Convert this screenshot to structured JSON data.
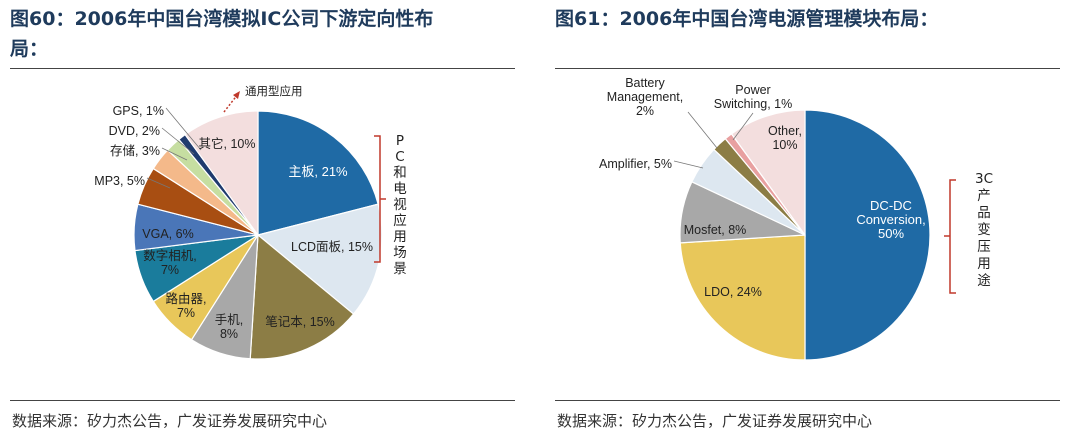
{
  "left": {
    "title_line1": "图60：2006年中国台湾模拟IC公司下游定向性布",
    "title_line2": "局：",
    "source": "数据来源：矽力杰公告，广发证券发展研究中心",
    "bracket_label_chars": [
      "P",
      "C",
      "和",
      "电",
      "视",
      "应",
      "用",
      "场",
      "景"
    ],
    "arrow_label": "通用型应用"
  },
  "right": {
    "title": "图61：2006年中国台湾电源管理模块布局：",
    "source": "数据来源：矽力杰公告，广发证券发展研究中心",
    "bracket_label_chars": [
      "3C",
      "产",
      "品",
      "变",
      "压",
      "用",
      "途"
    ]
  },
  "chart_data": [
    {
      "type": "pie",
      "title": "2006年中国台湾模拟IC公司下游定向性布局",
      "slices": [
        {
          "name": "主板",
          "value": 21,
          "color": "#1f6aa5",
          "label": "主板, 21%"
        },
        {
          "name": "LCD面板",
          "value": 15,
          "color": "#dde7f0",
          "label": "LCD面板, 15%"
        },
        {
          "name": "笔记本",
          "value": 15,
          "color": "#8c7d45",
          "label": "笔记本, 15%"
        },
        {
          "name": "手机",
          "value": 8,
          "color": "#a8a8a8",
          "label_lines": [
            "手机,",
            "8%"
          ]
        },
        {
          "name": "路由器",
          "value": 7,
          "color": "#e8c75a",
          "label_lines": [
            "路由器,",
            "7%"
          ]
        },
        {
          "name": "数字相机",
          "value": 7,
          "color": "#1a7c9c",
          "label_lines": [
            "数字相机,",
            "7%"
          ]
        },
        {
          "name": "VGA",
          "value": 6,
          "color": "#4a76b8",
          "label": "VGA, 6%"
        },
        {
          "name": "MP3",
          "value": 5,
          "color": "#a84e12",
          "label": "MP3, 5%"
        },
        {
          "name": "存储",
          "value": 3,
          "color": "#f4b98a",
          "label": "存储, 3%"
        },
        {
          "name": "DVD",
          "value": 2,
          "color": "#c6dea1",
          "label": "DVD, 2%"
        },
        {
          "name": "GPS",
          "value": 1,
          "color": "#1f3b6e",
          "label": "GPS, 1%"
        },
        {
          "name": "其它",
          "value": 10,
          "color": "#f3dede",
          "label": "其它, 10%"
        }
      ]
    },
    {
      "type": "pie",
      "title": "2006年中国台湾电源管理模块布局",
      "slices": [
        {
          "name": "DC-DC Conversion",
          "value": 50,
          "color": "#1f6aa5",
          "label_lines": [
            "DC-DC",
            "Conversion,",
            "50%"
          ]
        },
        {
          "name": "LDO",
          "value": 24,
          "color": "#e8c75a",
          "label": "LDO, 24%"
        },
        {
          "name": "Mosfet",
          "value": 8,
          "color": "#a8a8a8",
          "label": "Mosfet, 8%"
        },
        {
          "name": "Amplifier",
          "value": 5,
          "color": "#dde7f0",
          "label": "Amplifier, 5%"
        },
        {
          "name": "Battery Management",
          "value": 2,
          "color": "#8c7d45",
          "label_lines": [
            "Battery",
            "Management,",
            "2%"
          ]
        },
        {
          "name": "Power Switching",
          "value": 1,
          "color": "#e8a0a0",
          "label_lines": [
            "Power",
            "Switching, 1%"
          ]
        },
        {
          "name": "Other",
          "value": 10,
          "color": "#f3dede",
          "label_lines": [
            "Other,",
            "10%"
          ]
        }
      ]
    }
  ]
}
